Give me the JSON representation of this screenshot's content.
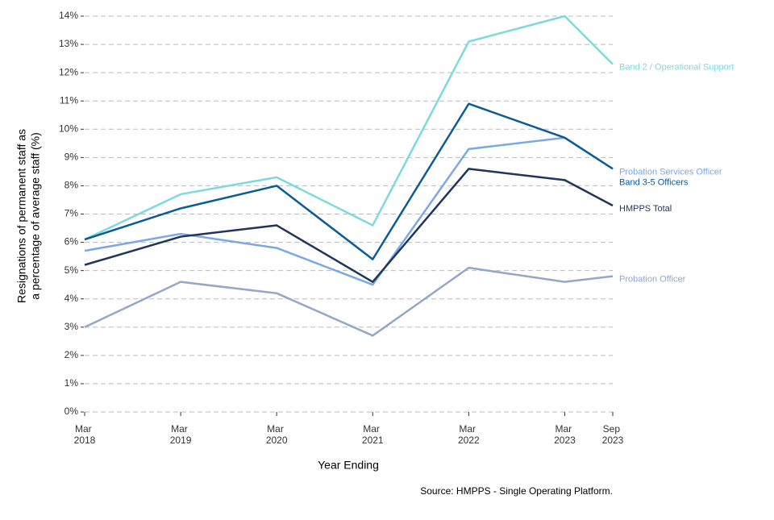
{
  "chart_data": {
    "type": "line",
    "ylabel": [
      "Resignations of permanent staff as",
      "a percentage of average staff (%)"
    ],
    "xlabel": "Year Ending",
    "source": "Source: HMPPS - Single Operating Platform.",
    "x": [
      "2018-03",
      "2019-03",
      "2020-03",
      "2021-03",
      "2022-03",
      "2023-03",
      "2023-09"
    ],
    "xticks": [
      {
        "value": "2018-03",
        "label": "Mar 2018"
      },
      {
        "value": "2019-03",
        "label": "Mar 2019"
      },
      {
        "value": "2020-03",
        "label": "Mar 2020"
      },
      {
        "value": "2021-03",
        "label": "Mar 2021"
      },
      {
        "value": "2022-03",
        "label": "Mar 2022"
      },
      {
        "value": "2023-03",
        "label": "Mar 2023"
      },
      {
        "value": "2023-09",
        "label": "Sep 2023"
      }
    ],
    "ylim": [
      0,
      14
    ],
    "yticks": [
      {
        "value": 0,
        "label": "0%"
      },
      {
        "value": 1,
        "label": "1%"
      },
      {
        "value": 2,
        "label": "2%"
      },
      {
        "value": 3,
        "label": "3%"
      },
      {
        "value": 4,
        "label": "4%"
      },
      {
        "value": 5,
        "label": "5%"
      },
      {
        "value": 6,
        "label": "6%"
      },
      {
        "value": 7,
        "label": "7%"
      },
      {
        "value": 8,
        "label": "8%"
      },
      {
        "value": 9,
        "label": "9%"
      },
      {
        "value": 10,
        "label": "10%"
      },
      {
        "value": 11,
        "label": "11%"
      },
      {
        "value": 12,
        "label": "12%"
      },
      {
        "value": 13,
        "label": "13%"
      },
      {
        "value": 14,
        "label": "14%"
      }
    ],
    "grid": true,
    "series": [
      {
        "name": "Band 2 / Operational Support",
        "color": "#7dd9e0",
        "values": [
          6.1,
          7.7,
          8.3,
          6.6,
          13.1,
          14.0,
          12.3
        ]
      },
      {
        "name": "Probation Services Officer",
        "color": "#7ba7e8",
        "values": [
          5.7,
          6.3,
          5.8,
          4.5,
          9.3,
          9.7,
          8.6
        ]
      },
      {
        "name": "Band 3-5 Officers",
        "color": "#0b5c96",
        "values": [
          6.1,
          7.2,
          8.0,
          5.4,
          10.9,
          9.7,
          8.6
        ]
      },
      {
        "name": "HMPPS Total",
        "color": "#1f3559",
        "values": [
          5.2,
          6.2,
          6.6,
          4.6,
          8.6,
          8.2,
          7.3
        ]
      },
      {
        "name": "Probation Officer",
        "color": "#93a8c6",
        "values": [
          3.0,
          4.6,
          4.2,
          2.7,
          5.1,
          4.6,
          4.8
        ]
      }
    ]
  }
}
